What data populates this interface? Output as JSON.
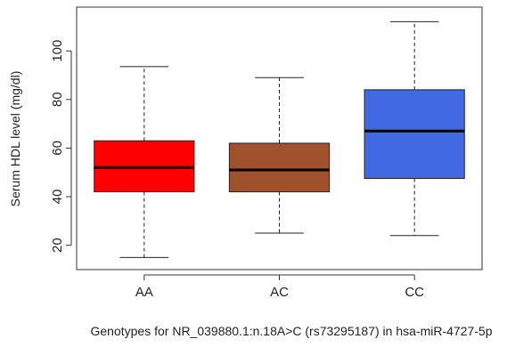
{
  "chart_data": {
    "type": "boxplot",
    "title": "",
    "xlabel": "Genotypes for NR_039880.1:n.18A>C (rs73295187) in hsa-miR-4727-5p",
    "ylabel": "Serum HDL level (mg/dl)",
    "categories": [
      "AA",
      "AC",
      "CC"
    ],
    "ylim": [
      10,
      118
    ],
    "yticks": [
      "20",
      "40",
      "60",
      "80",
      "100"
    ],
    "grid": false,
    "legend": "none",
    "boxes": [
      {
        "category": "AA",
        "whisker_low": 15,
        "q1": 42,
        "median": 52,
        "q3": 63,
        "whisker_high": 93.5,
        "color": "#ff0000"
      },
      {
        "category": "AC",
        "whisker_low": 25,
        "q1": 42,
        "median": 51,
        "q3": 62,
        "whisker_high": 89,
        "color": "#a0522d"
      },
      {
        "category": "CC",
        "whisker_low": 24,
        "q1": 47.5,
        "median": 67,
        "q3": 84,
        "whisker_high": 112,
        "color": "#4169e1"
      }
    ]
  }
}
